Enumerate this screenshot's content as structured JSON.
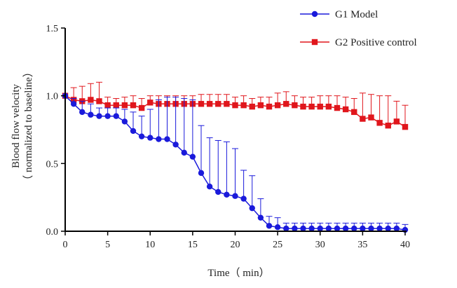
{
  "chart_data": {
    "type": "line",
    "title": "",
    "xlabel": "Time（ min）",
    "ylabel_line1": "Blood flow velocity",
    "ylabel_line2": "（ normalized to baseline）",
    "xlim": [
      0,
      40
    ],
    "ylim": [
      0,
      1.5
    ],
    "x_ticks": [
      0,
      5,
      10,
      15,
      20,
      25,
      30,
      35,
      40
    ],
    "x_tick_labels": [
      "0",
      "5",
      "10",
      "15",
      "20",
      "25",
      "30",
      "35",
      "40"
    ],
    "y_ticks": [
      0,
      0.5,
      1.0,
      1.5
    ],
    "y_tick_labels": [
      "0.0",
      "0.5",
      "1.0",
      "1.5"
    ],
    "grid": false,
    "legend_position": "top-right",
    "x": [
      0,
      1,
      2,
      3,
      4,
      5,
      6,
      7,
      8,
      9,
      10,
      11,
      12,
      13,
      14,
      15,
      16,
      17,
      18,
      19,
      20,
      21,
      22,
      23,
      24,
      25,
      26,
      27,
      28,
      29,
      30,
      31,
      32,
      33,
      34,
      35,
      36,
      37,
      38,
      39,
      40
    ],
    "series": [
      {
        "name": "G1 Model",
        "color": "#1a1adb",
        "marker": "circle",
        "values": [
          1.0,
          0.94,
          0.88,
          0.86,
          0.85,
          0.85,
          0.85,
          0.81,
          0.74,
          0.7,
          0.69,
          0.68,
          0.68,
          0.64,
          0.58,
          0.55,
          0.43,
          0.33,
          0.29,
          0.27,
          0.26,
          0.24,
          0.17,
          0.1,
          0.04,
          0.03,
          0.02,
          0.02,
          0.02,
          0.02,
          0.02,
          0.02,
          0.02,
          0.02,
          0.02,
          0.02,
          0.02,
          0.02,
          0.02,
          0.02,
          0.01
        ],
        "error_upper": [
          0.0,
          0.04,
          0.08,
          0.08,
          0.06,
          0.06,
          0.06,
          0.09,
          0.14,
          0.15,
          0.21,
          0.29,
          0.31,
          0.35,
          0.4,
          0.42,
          0.35,
          0.36,
          0.38,
          0.39,
          0.35,
          0.21,
          0.24,
          0.14,
          0.07,
          0.07,
          0.04,
          0.04,
          0.04,
          0.04,
          0.04,
          0.04,
          0.04,
          0.04,
          0.04,
          0.04,
          0.04,
          0.04,
          0.04,
          0.04,
          0.04
        ]
      },
      {
        "name": "G2 Positive control",
        "color": "#e0161c",
        "marker": "square",
        "values": [
          1.0,
          0.97,
          0.96,
          0.97,
          0.96,
          0.93,
          0.93,
          0.93,
          0.93,
          0.91,
          0.95,
          0.94,
          0.94,
          0.94,
          0.94,
          0.94,
          0.94,
          0.94,
          0.94,
          0.94,
          0.93,
          0.93,
          0.92,
          0.93,
          0.92,
          0.93,
          0.94,
          0.93,
          0.92,
          0.92,
          0.92,
          0.92,
          0.91,
          0.9,
          0.88,
          0.83,
          0.84,
          0.8,
          0.78,
          0.81,
          0.77
        ],
        "error_upper": [
          0.0,
          0.09,
          0.11,
          0.12,
          0.14,
          0.06,
          0.05,
          0.06,
          0.07,
          0.07,
          0.05,
          0.06,
          0.06,
          0.06,
          0.06,
          0.06,
          0.07,
          0.07,
          0.07,
          0.07,
          0.06,
          0.07,
          0.06,
          0.06,
          0.07,
          0.09,
          0.09,
          0.07,
          0.07,
          0.07,
          0.08,
          0.08,
          0.09,
          0.09,
          0.1,
          0.19,
          0.17,
          0.2,
          0.22,
          0.15,
          0.16
        ]
      }
    ]
  }
}
